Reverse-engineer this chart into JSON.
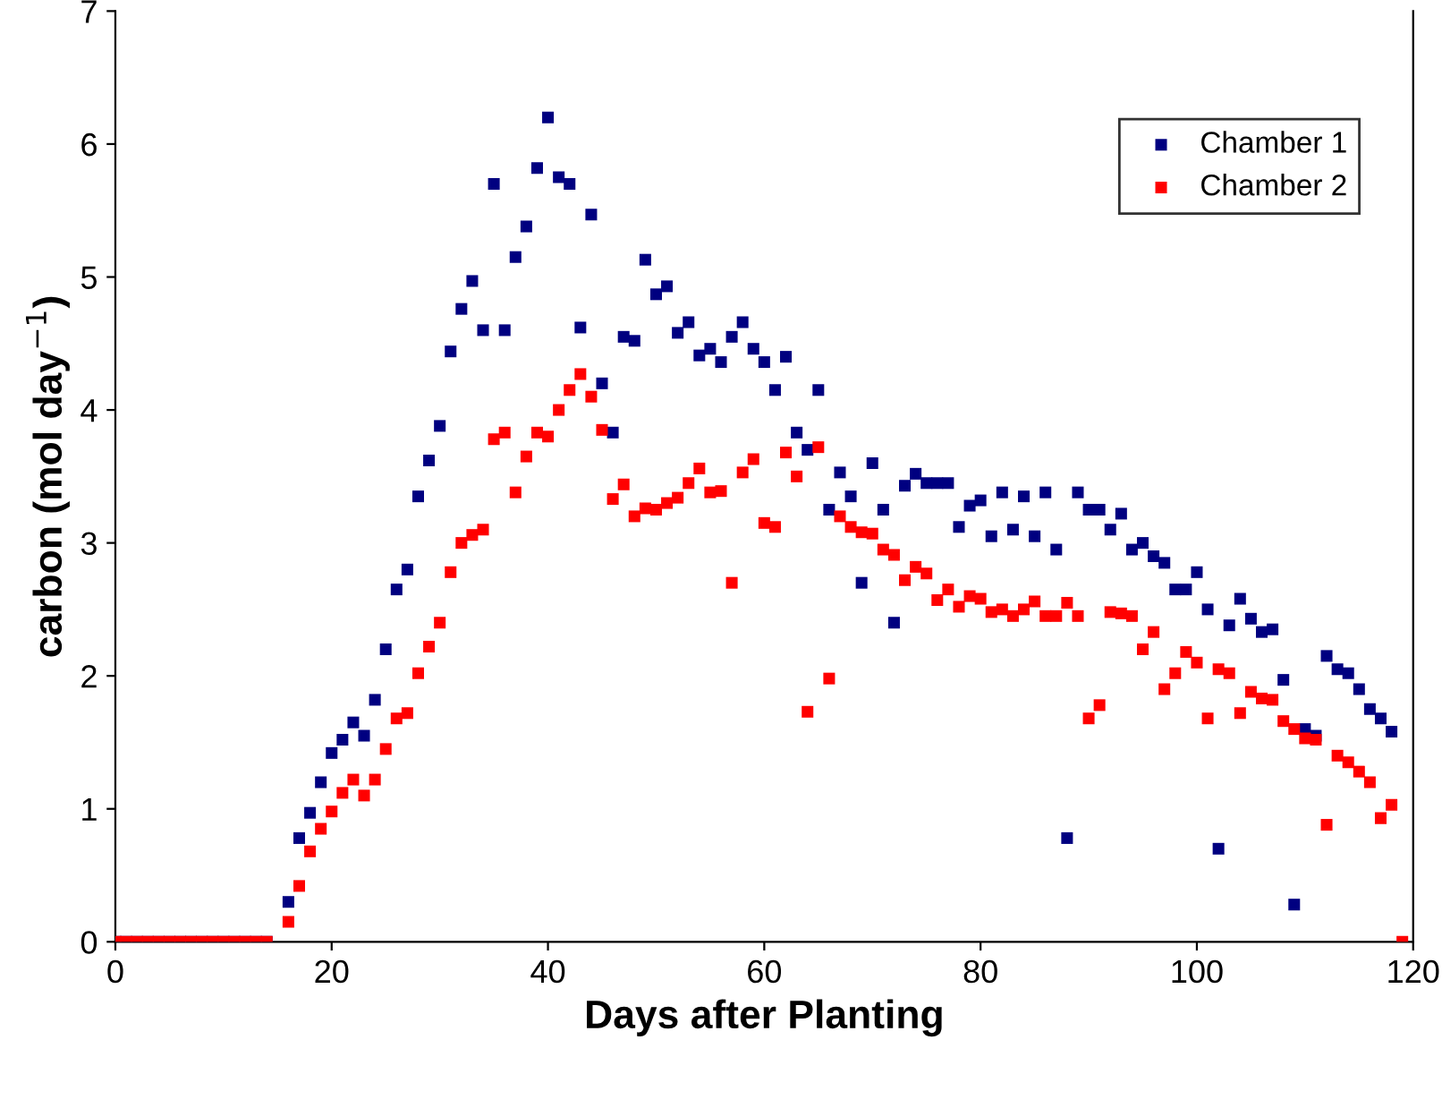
{
  "chart_data": {
    "type": "scatter",
    "xlabel": "Days after Planting",
    "ylabel": "carbon (mol day$^{−1}$)",
    "x": [
      0,
      1,
      2,
      3,
      4,
      5,
      6,
      7,
      8,
      9,
      10,
      11,
      12,
      13,
      14,
      15,
      16,
      17,
      18,
      19,
      20,
      21,
      22,
      23,
      24,
      25,
      26,
      27,
      28,
      29,
      30,
      31,
      32,
      33,
      34,
      35,
      36,
      37,
      38,
      39,
      40,
      41,
      42,
      43,
      44,
      45,
      46,
      47,
      48,
      49,
      50,
      51,
      52,
      53,
      54,
      55,
      56,
      57,
      58,
      59,
      60,
      61,
      62,
      63,
      64,
      65,
      66,
      67,
      68,
      69,
      70,
      71,
      72,
      73,
      74,
      75,
      76,
      77,
      78,
      79,
      80,
      81,
      82,
      83,
      84,
      85,
      86,
      87,
      88,
      89,
      90,
      91,
      92,
      93,
      94,
      95,
      96,
      97,
      98,
      99,
      100,
      101,
      102,
      103,
      104,
      105,
      106,
      107,
      108,
      109,
      110,
      111,
      112,
      113,
      114,
      115,
      116,
      117,
      118,
      119
    ],
    "series": [
      {
        "name": "Chamber 1",
        "color": "#000080",
        "values": [
          0,
          0,
          0,
          0,
          0,
          0,
          0,
          0,
          0,
          0,
          0,
          0,
          0,
          0,
          0,
          null,
          0.3,
          0.78,
          0.97,
          1.2,
          1.42,
          1.52,
          1.65,
          1.55,
          1.82,
          2.2,
          2.65,
          2.8,
          3.35,
          3.62,
          3.88,
          4.44,
          4.76,
          4.97,
          4.6,
          5.7,
          4.6,
          5.15,
          5.38,
          5.82,
          6.2,
          5.75,
          5.7,
          4.62,
          5.47,
          4.2,
          3.83,
          4.55,
          4.52,
          5.13,
          4.87,
          4.93,
          4.58,
          4.66,
          4.41,
          4.46,
          4.36,
          4.55,
          4.66,
          4.46,
          4.36,
          4.15,
          4.4,
          3.83,
          3.7,
          4.15,
          3.25,
          3.53,
          3.35,
          2.7,
          3.6,
          3.25,
          2.4,
          3.43,
          3.52,
          3.45,
          3.45,
          3.45,
          3.12,
          3.28,
          3.32,
          3.05,
          3.38,
          3.1,
          3.35,
          3.05,
          3.38,
          2.95,
          0.78,
          3.38,
          3.25,
          3.25,
          3.1,
          3.22,
          2.95,
          3.0,
          2.9,
          2.85,
          2.65,
          2.65,
          2.78,
          2.5,
          0.7,
          2.38,
          2.58,
          2.43,
          2.33,
          2.35,
          1.97,
          0.28,
          1.6,
          1.55,
          2.15,
          2.05,
          2.02,
          1.9,
          1.75,
          1.68,
          1.58,
          null
        ]
      },
      {
        "name": "Chamber 2",
        "color": "#ff0000",
        "values": [
          0,
          0,
          0,
          0,
          0,
          0,
          0,
          0,
          0,
          0,
          0,
          0,
          0,
          0,
          0,
          null,
          0.15,
          0.42,
          0.68,
          0.85,
          0.98,
          1.12,
          1.22,
          1.1,
          1.22,
          1.45,
          1.68,
          1.72,
          2.02,
          2.22,
          2.4,
          2.78,
          3.0,
          3.06,
          3.1,
          3.78,
          3.83,
          3.38,
          3.65,
          3.83,
          3.8,
          4.0,
          4.15,
          4.27,
          4.1,
          3.85,
          3.33,
          3.44,
          3.2,
          3.26,
          3.25,
          3.3,
          3.34,
          3.45,
          3.56,
          3.38,
          3.39,
          2.7,
          3.53,
          3.63,
          3.15,
          3.12,
          3.68,
          3.5,
          1.73,
          3.72,
          1.98,
          3.2,
          3.12,
          3.08,
          3.07,
          2.95,
          2.91,
          2.72,
          2.82,
          2.77,
          2.57,
          2.65,
          2.52,
          2.6,
          2.58,
          2.48,
          2.5,
          2.45,
          2.5,
          2.56,
          2.45,
          2.45,
          2.55,
          2.45,
          1.68,
          1.78,
          2.48,
          2.47,
          2.45,
          2.2,
          2.33,
          1.9,
          2.02,
          2.18,
          2.1,
          1.68,
          2.05,
          2.02,
          1.72,
          1.88,
          1.83,
          1.82,
          1.66,
          1.6,
          1.53,
          1.52,
          0.88,
          1.4,
          1.35,
          1.28,
          1.2,
          0.93,
          1.03,
          0
        ]
      }
    ],
    "xlim": [
      0,
      120
    ],
    "xticks": [
      0,
      20,
      40,
      60,
      80,
      100,
      120
    ],
    "ylim": [
      0,
      7
    ],
    "yticks": [
      0,
      1,
      2,
      3,
      4,
      5,
      6,
      7
    ],
    "grid": false,
    "legend": "top right",
    "marker": "square"
  }
}
